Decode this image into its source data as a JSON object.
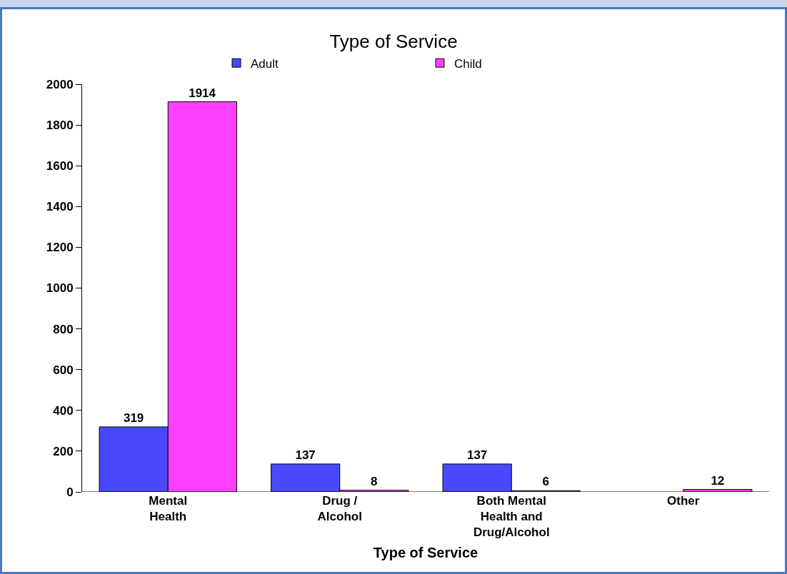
{
  "chart_data": {
    "type": "bar",
    "title": "Type of Service",
    "xlabel": "Type of Service",
    "categories": [
      "Mental Health",
      "Drug / Alcohol",
      "Both Mental Health and Drug/Alcohol",
      "Other"
    ],
    "series": [
      {
        "name": "Adult",
        "color": "#4848ff",
        "values": [
          319,
          137,
          137,
          null
        ]
      },
      {
        "name": "Child",
        "color": "#ff40ff",
        "values": [
          1914,
          8,
          6,
          12
        ]
      }
    ],
    "ylim": [
      0,
      2000
    ],
    "yticks": [
      0,
      200,
      400,
      600,
      800,
      1000,
      1200,
      1400,
      1600,
      1800,
      2000
    ],
    "grid": false,
    "legend": "top",
    "data_labels": true
  }
}
